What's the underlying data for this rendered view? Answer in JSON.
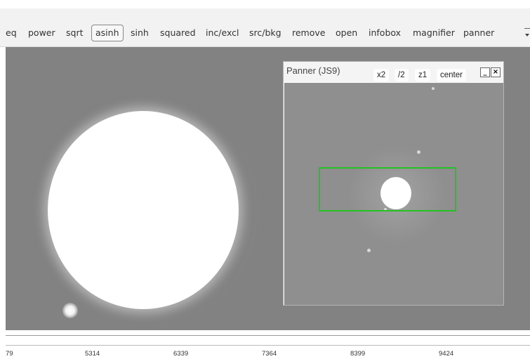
{
  "menu": {
    "items": [
      {
        "label": "eq"
      },
      {
        "label": "power"
      },
      {
        "label": "sqrt"
      },
      {
        "label": "asinh",
        "selected": true
      },
      {
        "label": "sinh"
      },
      {
        "label": "squared"
      },
      {
        "label": "inc/excl"
      },
      {
        "label": "src/bkg"
      },
      {
        "label": "remove"
      },
      {
        "label": "open"
      },
      {
        "label": "infobox"
      },
      {
        "label": "magnifier"
      },
      {
        "label": "panner"
      }
    ]
  },
  "panner": {
    "title": "Panner (JS9)",
    "buttons": [
      "x2",
      "/2",
      "z1",
      "center"
    ],
    "minimize": "_",
    "close": "×"
  },
  "axis": {
    "tick_labels": [
      "79",
      "5314",
      "6339",
      "7364",
      "8399",
      "9424"
    ]
  },
  "colors": {
    "view_rect": "#22c322",
    "image_background": "#828282"
  }
}
